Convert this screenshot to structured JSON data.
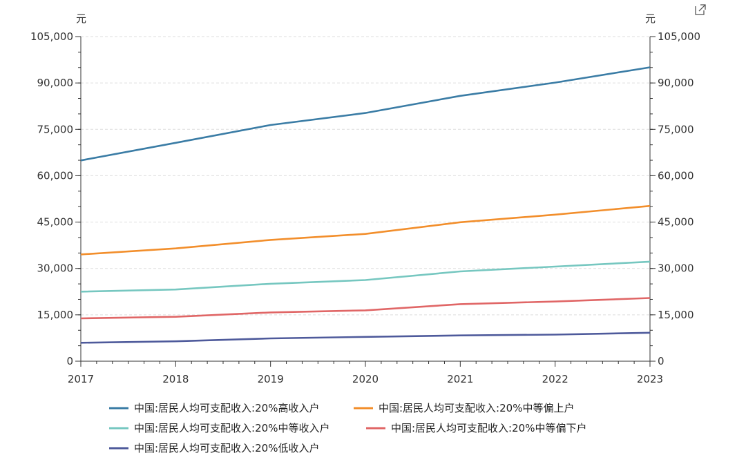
{
  "chart_data": {
    "type": "line",
    "x": [
      "2017",
      "2018",
      "2019",
      "2020",
      "2021",
      "2022",
      "2023"
    ],
    "ylim": [
      0,
      105000
    ],
    "yticks": [
      0,
      15000,
      30000,
      45000,
      60000,
      75000,
      90000,
      105000
    ],
    "ytick_labels": [
      "0",
      "15,000",
      "30,000",
      "45,000",
      "60,000",
      "75,000",
      "90,000",
      "105,000"
    ],
    "y_unit_left": "元",
    "y_unit_right": "元",
    "grid": true,
    "legend_position": "bottom",
    "series": [
      {
        "name": "中国:居民人均可支配收入:20%高收入户",
        "color": "#3a7ca5",
        "values": [
          64934,
          70640,
          76401,
          80294,
          85836,
          90116,
          95055
        ]
      },
      {
        "name": "中国:居民人均可支配收入:20%中等偏上户",
        "color": "#f28e2b",
        "values": [
          34547,
          36471,
          39230,
          41172,
          44949,
          47397,
          50220
        ]
      },
      {
        "name": "中国:居民人均可支配收入:20%中等收入户",
        "color": "#76c7c0",
        "values": [
          22495,
          23189,
          25035,
          26249,
          29053,
          30598,
          32195
        ]
      },
      {
        "name": "中国:居民人均可支配收入:20%中等偏下户",
        "color": "#e06666",
        "values": [
          13843,
          14361,
          15777,
          16443,
          18446,
          19303,
          20442
        ]
      },
      {
        "name": "中国:居民人均可支配收入:20%低收入户",
        "color": "#4e5a9b",
        "values": [
          5958,
          6440,
          7380,
          7869,
          8333,
          8601,
          9215
        ]
      }
    ]
  },
  "toolbar": {
    "expand_icon": "external-link-icon"
  }
}
